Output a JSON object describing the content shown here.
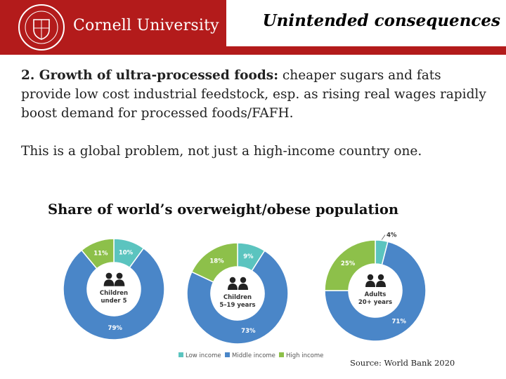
{
  "header": {
    "brand": "Cornell University",
    "title": "Unintended consequences"
  },
  "body": {
    "para1_bold": "2. Growth of ultra-processed foods:",
    "para1_rest": " cheaper sugars and fats provide low cost industrial feedstock, esp. as rising real wages rapidly boost demand for processed foods/FAFH.",
    "para2": "This is a global problem, not just a high-income country one."
  },
  "source": "Source: World Bank 2020",
  "colors": {
    "low_income": "#5bc4bf",
    "middle_income": "#4a86c8",
    "high_income": "#8dc04a",
    "brand_red": "#b31b1b"
  },
  "chart_data": {
    "type": "pie",
    "title": "Share of world’s overweight/obese population",
    "legend": [
      "Low income",
      "Middle income",
      "High income"
    ],
    "legend_position": "bottom",
    "charts": [
      {
        "label_lines": [
          "Children",
          "under 5"
        ],
        "values": [
          10,
          79,
          11
        ],
        "labels": [
          "10%",
          "79%",
          "11%"
        ]
      },
      {
        "label_lines": [
          "Children",
          "5–19 years"
        ],
        "values": [
          9,
          73,
          18
        ],
        "labels": [
          "9%",
          "73%",
          "18%"
        ]
      },
      {
        "label_lines": [
          "Adults",
          "20+ years"
        ],
        "values": [
          4,
          71,
          25
        ],
        "labels": [
          "4%",
          "71%",
          "25%"
        ]
      }
    ]
  }
}
